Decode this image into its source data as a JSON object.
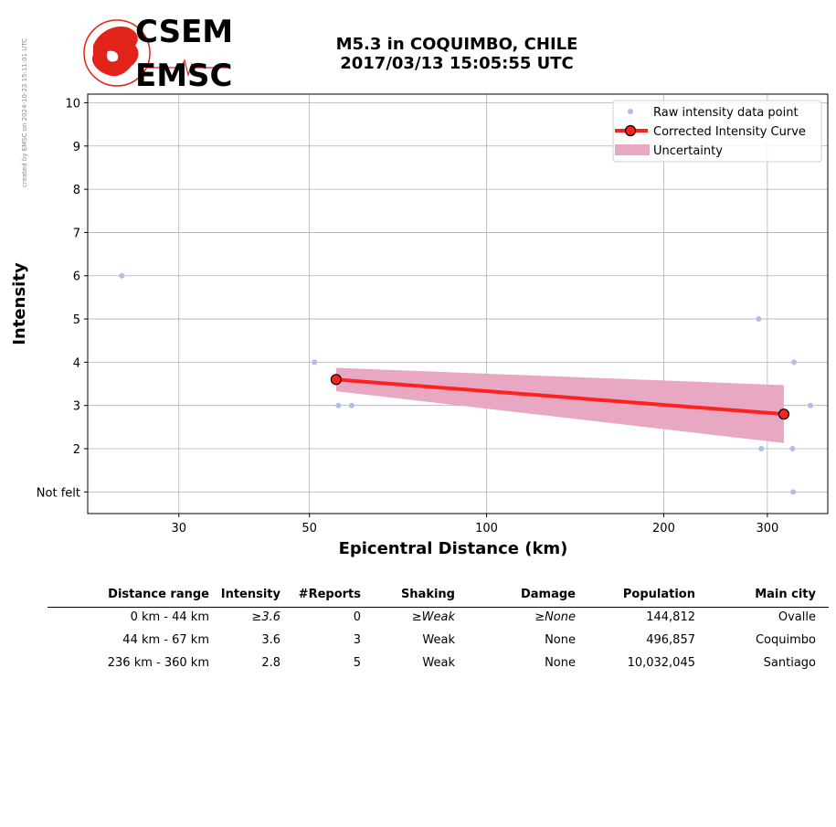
{
  "side_note": "created by EMSC on 2024-10-23 15:11:01 UTC",
  "logo": {
    "top": "CSEM",
    "bottom": "EMSC",
    "color": "#e2231a"
  },
  "title": {
    "line1": "M5.3 in COQUIMBO, CHILE",
    "line2": "2017/03/13 15:05:55 UTC"
  },
  "chart_data": {
    "type": "scatter",
    "xlabel": "Epicentral Distance (km)",
    "ylabel": "Intensity",
    "x_scale": "log",
    "xlim": [
      21,
      380
    ],
    "ylim": [
      0.5,
      10.2
    ],
    "x_ticks": [
      30,
      50,
      100,
      200,
      300
    ],
    "y_ticks": [
      {
        "value": 1,
        "label": "Not felt"
      },
      {
        "value": 2,
        "label": "2"
      },
      {
        "value": 3,
        "label": "3"
      },
      {
        "value": 4,
        "label": "4"
      },
      {
        "value": 5,
        "label": "5"
      },
      {
        "value": 6,
        "label": "6"
      },
      {
        "value": 7,
        "label": "7"
      },
      {
        "value": 8,
        "label": "8"
      },
      {
        "value": 9,
        "label": "9"
      },
      {
        "value": 10,
        "label": "10"
      }
    ],
    "grid": true,
    "legend_position": "top-right",
    "raw_points": {
      "name": "Raw intensity data point",
      "color": "#aebee6",
      "points": [
        [
          24,
          6
        ],
        [
          51,
          4
        ],
        [
          56,
          3
        ],
        [
          59,
          3
        ],
        [
          290,
          5
        ],
        [
          293,
          2
        ],
        [
          333,
          4
        ],
        [
          331,
          2
        ],
        [
          355,
          3
        ],
        [
          332,
          1
        ]
      ]
    },
    "curve": {
      "name": "Corrected Intensity Curve",
      "color": "#ff2020",
      "points": [
        [
          55.5,
          3.6
        ],
        [
          320,
          2.8
        ]
      ]
    },
    "uncertainty": {
      "name": "Uncertainty",
      "color": "#e8a7c2",
      "upper": [
        [
          55.5,
          3.87
        ],
        [
          320,
          3.47
        ]
      ],
      "lower": [
        [
          55.5,
          3.33
        ],
        [
          320,
          2.13
        ]
      ]
    }
  },
  "table": {
    "headers": [
      "Distance range",
      "Intensity",
      "#Reports",
      "Shaking",
      "Damage",
      "Population",
      "Main city"
    ],
    "rows": [
      {
        "range": "0 km -   44 km",
        "intensity": "≥3.6",
        "reports": "0",
        "shaking": "≥Weak",
        "damage": "≥None",
        "population": "144,812",
        "city": "Ovalle"
      },
      {
        "range": "44 km -   67 km",
        "intensity": "3.6",
        "reports": "3",
        "shaking": "Weak",
        "damage": "None",
        "population": "496,857",
        "city": "Coquimbo"
      },
      {
        "range": "236 km -  360 km",
        "intensity": "2.8",
        "reports": "5",
        "shaking": "Weak",
        "damage": "None",
        "population": "10,032,045",
        "city": "Santiago"
      }
    ]
  }
}
